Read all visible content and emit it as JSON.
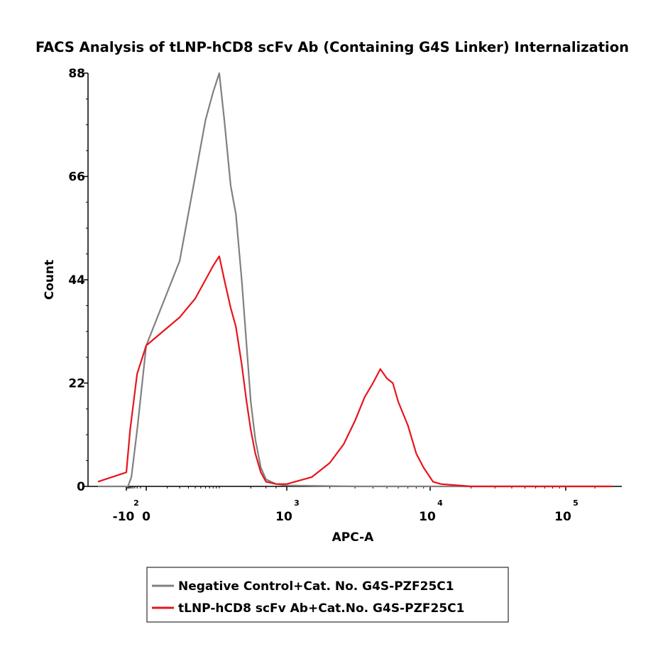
{
  "chart_data": {
    "type": "line",
    "title": "FACS Analysis of tLNP-hCD8 scFv Ab (Containing G4S Linker) Internalization",
    "xlabel": "APC-A",
    "ylabel": "Count",
    "x_scale": "biexponential",
    "y_ticks": [
      "0",
      "22",
      "44",
      "66",
      "88"
    ],
    "ylim": [
      0,
      88
    ],
    "x_ticks": [
      {
        "value": -100,
        "base": "-10",
        "exp": "2"
      },
      {
        "value": 0,
        "label": "0"
      },
      {
        "value": 1000,
        "base": "10",
        "exp": "3"
      },
      {
        "value": 10000,
        "base": "10",
        "exp": "4"
      },
      {
        "value": 100000,
        "base": "10",
        "exp": "5"
      }
    ],
    "legend_position": "bottom-center",
    "series": [
      {
        "name": "Negative Control+Cat. No. G4S-PZF25C1",
        "color": "#808080",
        "points": [
          [
            -130,
            0
          ],
          [
            -80,
            0
          ],
          [
            -50,
            2
          ],
          [
            -20,
            12
          ],
          [
            0,
            30
          ],
          [
            20,
            48
          ],
          [
            40,
            66
          ],
          [
            60,
            78
          ],
          [
            80,
            84
          ],
          [
            100,
            88
          ],
          [
            120,
            78
          ],
          [
            150,
            64
          ],
          [
            180,
            58
          ],
          [
            220,
            44
          ],
          [
            260,
            30
          ],
          [
            300,
            18
          ],
          [
            350,
            10
          ],
          [
            420,
            4
          ],
          [
            500,
            1.5
          ],
          [
            700,
            0.5
          ],
          [
            1000,
            0.2
          ],
          [
            3000,
            0
          ],
          [
            100000,
            0
          ],
          [
            300000,
            0
          ]
        ]
      },
      {
        "name": "tLNP-hCD8 scFv Ab+Cat.No. G4S-PZF25C1",
        "color": "#e8141a",
        "points": [
          [
            -130,
            1
          ],
          [
            -100,
            3
          ],
          [
            -60,
            12
          ],
          [
            -20,
            24
          ],
          [
            0,
            30
          ],
          [
            20,
            36
          ],
          [
            40,
            40
          ],
          [
            60,
            44
          ],
          [
            80,
            47
          ],
          [
            100,
            49
          ],
          [
            120,
            44
          ],
          [
            150,
            38
          ],
          [
            180,
            34
          ],
          [
            220,
            26
          ],
          [
            260,
            18
          ],
          [
            300,
            12
          ],
          [
            350,
            7
          ],
          [
            420,
            3
          ],
          [
            500,
            1
          ],
          [
            700,
            0.5
          ],
          [
            1000,
            0.5
          ],
          [
            1500,
            2
          ],
          [
            2000,
            5
          ],
          [
            2500,
            9
          ],
          [
            3000,
            14
          ],
          [
            3500,
            19
          ],
          [
            4000,
            22
          ],
          [
            4500,
            25
          ],
          [
            5000,
            23
          ],
          [
            5500,
            22
          ],
          [
            6000,
            18
          ],
          [
            7000,
            13
          ],
          [
            8000,
            7
          ],
          [
            9000,
            4
          ],
          [
            10500,
            1
          ],
          [
            12000,
            0.5
          ],
          [
            20000,
            0
          ],
          [
            300000,
            0
          ]
        ]
      }
    ]
  }
}
